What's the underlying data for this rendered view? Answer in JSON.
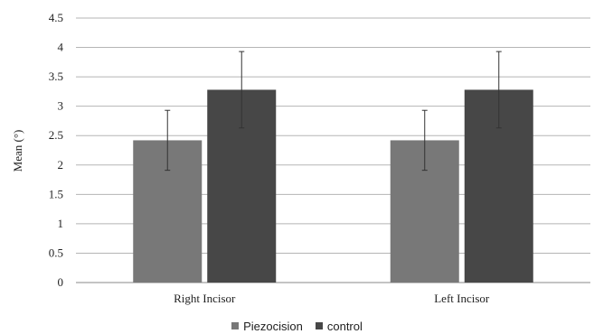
{
  "chart_data": {
    "type": "bar",
    "ylabel": "Mean (°)",
    "ylim": [
      0,
      4.5
    ],
    "yticks": [
      "0",
      "0.5",
      "1",
      "1.5",
      "2",
      "2.5",
      "3",
      "3.5",
      "4",
      "4.5"
    ],
    "grid": true,
    "legend_position": "bottom",
    "categories": [
      "Right Incisor",
      "Left Incisor"
    ],
    "series": [
      {
        "name": "Piezocision",
        "color": "#787878",
        "values": [
          2.42,
          2.42
        ],
        "error": [
          0.51,
          0.51
        ]
      },
      {
        "name": "control",
        "color": "#474747",
        "values": [
          3.28,
          3.28
        ],
        "error": [
          0.65,
          0.65
        ]
      }
    ]
  }
}
